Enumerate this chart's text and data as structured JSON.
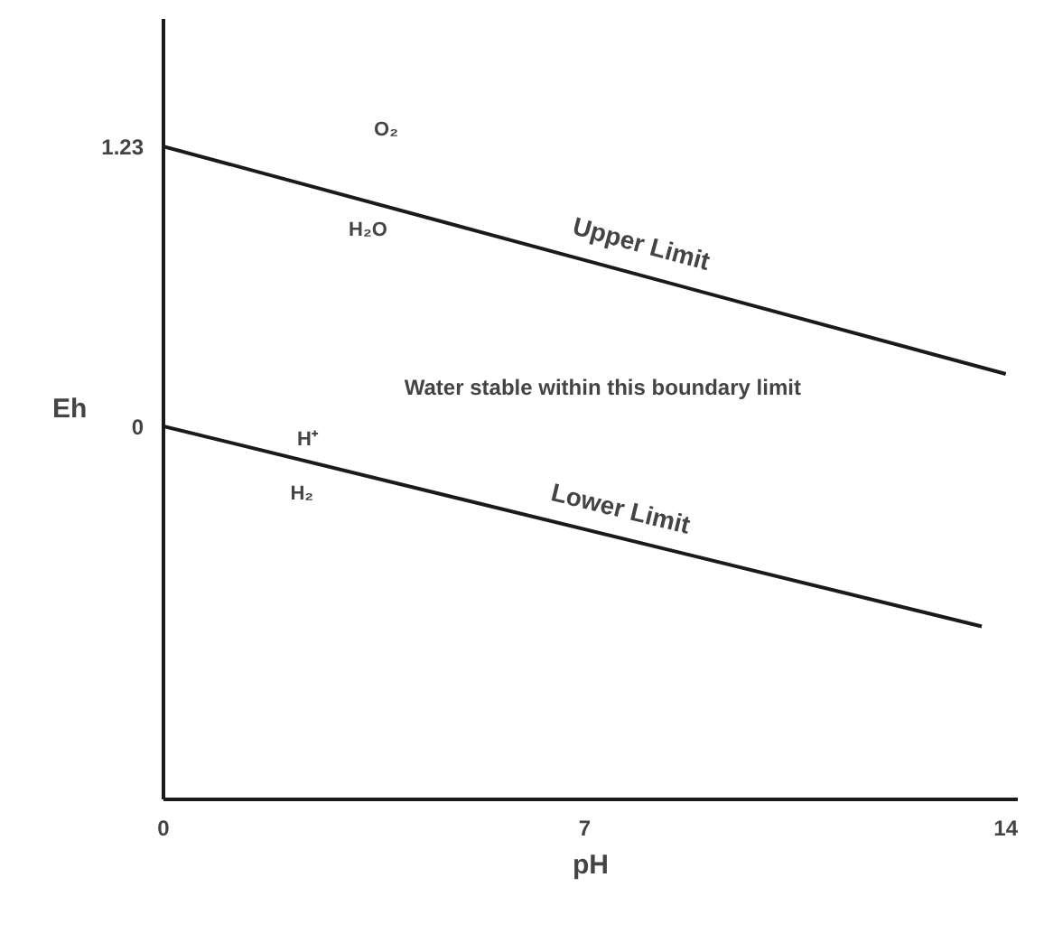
{
  "chart_data": {
    "type": "line",
    "xlabel": "pH",
    "ylabel": "Eh",
    "xlim": [
      0,
      14.2
    ],
    "ylim": [
      -1.64,
      1.79
    ],
    "xticks": [
      0,
      7,
      14
    ],
    "yticks": [
      0,
      1.23
    ],
    "grid": false,
    "marker": "none",
    "line_style": "solid",
    "series": [
      {
        "color": "#1a1a1a",
        "x": [
          0,
          14
        ],
        "values": [
          1.23,
          0.23
        ]
      },
      {
        "color": "#1a1a1a",
        "x": [
          0,
          13.6
        ],
        "values": [
          0,
          -0.88
        ]
      }
    ],
    "annotations": [
      "O₂",
      "H₂O",
      "Upper  Limit",
      "Water stable within this boundary limit",
      "H⁺",
      "H₂",
      "Lower Limit"
    ]
  }
}
